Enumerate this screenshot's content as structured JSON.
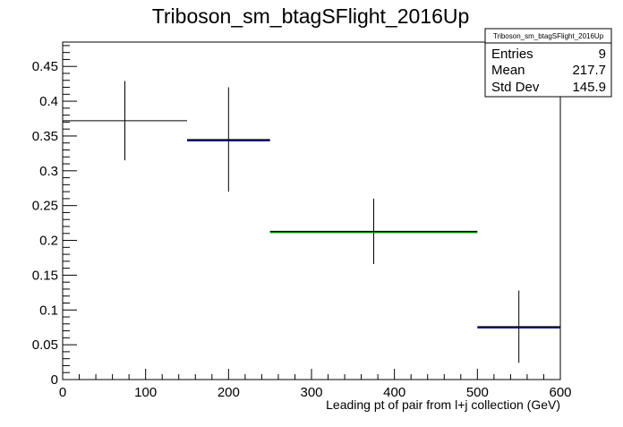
{
  "chart_data": {
    "type": "scatter",
    "title": "Triboson_sm_btagSFlight_2016Up",
    "xlabel": "Leading pt of pair from l+j collection (GeV)",
    "ylabel": "",
    "xlim": [
      0,
      600
    ],
    "ylim": [
      0,
      0.485
    ],
    "x_ticks": [
      0,
      100,
      200,
      300,
      400,
      500,
      600
    ],
    "y_ticks": [
      0,
      0.05,
      0.1,
      0.15,
      0.2,
      0.25,
      0.3,
      0.35,
      0.4,
      0.45
    ],
    "grid": false,
    "legend": "none",
    "stats_box": {
      "title": "Triboson_sm_btagSFlight_2016Up",
      "position": "top-right",
      "rows": [
        {
          "label": "Entries",
          "value": "9"
        },
        {
          "label": "Mean",
          "value": "217.7"
        },
        {
          "label": "Std Dev",
          "value": "145.9"
        }
      ]
    },
    "bins": [
      {
        "x_low": 0,
        "x_high": 150,
        "x_center": 75,
        "y": 0.372,
        "err": 0.057,
        "color": "#000000"
      },
      {
        "x_low": 150,
        "x_high": 250,
        "x_center": 200,
        "y": 0.345,
        "err": 0.075,
        "color": "#00007f"
      },
      {
        "x_low": 250,
        "x_high": 500,
        "x_center": 375,
        "y": 0.213,
        "err": 0.047,
        "color": "#007f00"
      },
      {
        "x_low": 500,
        "x_high": 600,
        "x_center": 550,
        "y": 0.076,
        "err": 0.052,
        "color": "#00007f"
      }
    ]
  }
}
